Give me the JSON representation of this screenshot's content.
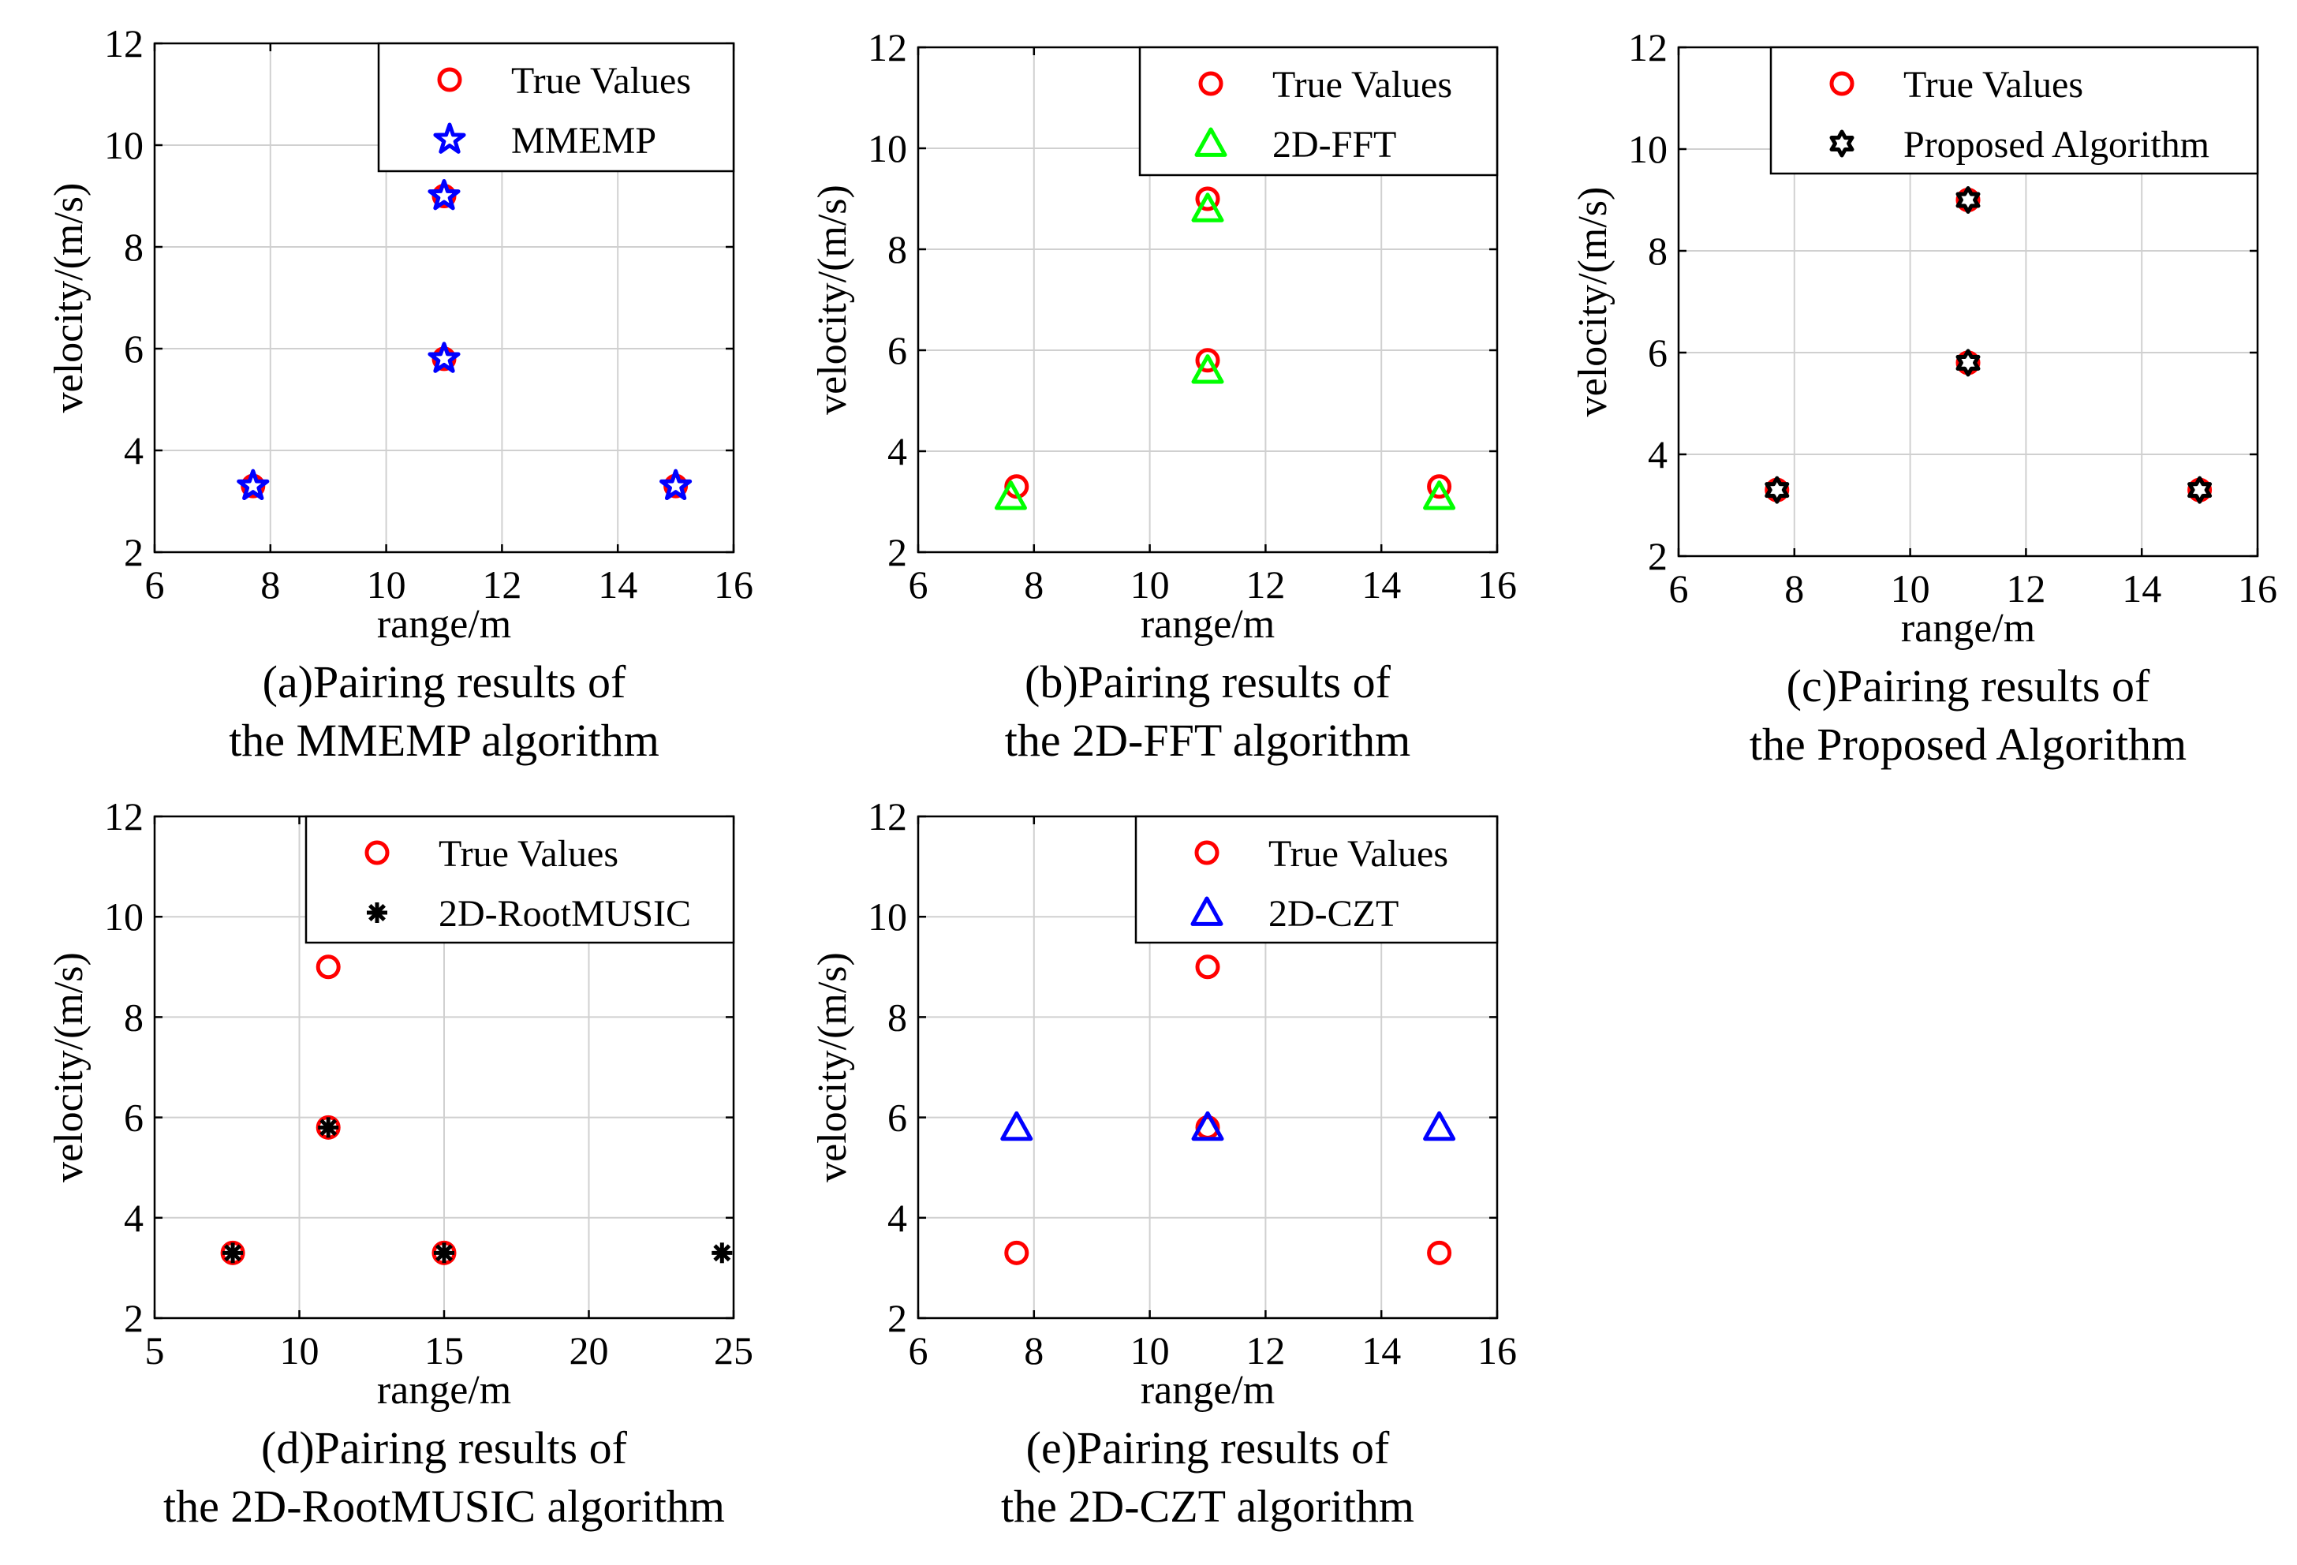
{
  "chart_data": [
    {
      "type": "scatter",
      "caption_line1": "(a)Pairing results of",
      "caption_line2": "the MMEMP algorithm",
      "xlabel": "range/m",
      "ylabel": "velocity/(m/s)",
      "xlim": [
        6,
        16
      ],
      "ylim": [
        2,
        12
      ],
      "xticks": [
        6,
        8,
        10,
        12,
        14,
        16
      ],
      "yticks": [
        2,
        4,
        6,
        8,
        10,
        12
      ],
      "grid": true,
      "legend_position": "top-right",
      "series": [
        {
          "name": "True Values",
          "marker": "circle",
          "color": "#ff0000",
          "points": [
            [
              7.7,
              3.3
            ],
            [
              11,
              5.8
            ],
            [
              11,
              9
            ],
            [
              15,
              3.3
            ]
          ]
        },
        {
          "name": "MMEMP",
          "marker": "pentagram",
          "color": "#0000ff",
          "points": [
            [
              7.7,
              3.3
            ],
            [
              11,
              5.8
            ],
            [
              11,
              9
            ],
            [
              15,
              3.3
            ]
          ]
        }
      ]
    },
    {
      "type": "scatter",
      "caption_line1": "(b)Pairing results of",
      "caption_line2": "the 2D-FFT algorithm",
      "xlabel": "range/m",
      "ylabel": "velocity/(m/s)",
      "xlim": [
        6,
        16
      ],
      "ylim": [
        2,
        12
      ],
      "xticks": [
        6,
        8,
        10,
        12,
        14,
        16
      ],
      "yticks": [
        2,
        4,
        6,
        8,
        10,
        12
      ],
      "grid": true,
      "legend_position": "top-right",
      "series": [
        {
          "name": "True Values",
          "marker": "circle",
          "color": "#ff0000",
          "points": [
            [
              7.7,
              3.3
            ],
            [
              11,
              5.8
            ],
            [
              11,
              9
            ],
            [
              15,
              3.3
            ]
          ]
        },
        {
          "name": "2D-FFT",
          "marker": "triangle",
          "color": "#00ff00",
          "points": [
            [
              7.6,
              3.1
            ],
            [
              11,
              5.6
            ],
            [
              11,
              8.8
            ],
            [
              15,
              3.1
            ]
          ]
        }
      ]
    },
    {
      "type": "scatter",
      "caption_line1": "(c)Pairing results of",
      "caption_line2": "the Proposed Algorithm",
      "xlabel": "range/m",
      "ylabel": "velocity/(m/s)",
      "xlim": [
        6,
        16
      ],
      "ylim": [
        2,
        12
      ],
      "xticks": [
        6,
        8,
        10,
        12,
        14,
        16
      ],
      "yticks": [
        2,
        4,
        6,
        8,
        10,
        12
      ],
      "grid": true,
      "legend_position": "top-right",
      "series": [
        {
          "name": "True Values",
          "marker": "circle",
          "color": "#ff0000",
          "points": [
            [
              7.7,
              3.3
            ],
            [
              11,
              5.8
            ],
            [
              11,
              9
            ],
            [
              15,
              3.3
            ]
          ]
        },
        {
          "name": "Proposed Algorithm",
          "marker": "hexagram",
          "color": "#000000",
          "points": [
            [
              7.7,
              3.3
            ],
            [
              11,
              5.8
            ],
            [
              11,
              9
            ],
            [
              15,
              3.3
            ]
          ]
        }
      ]
    },
    {
      "type": "scatter",
      "caption_line1": "(d)Pairing results of",
      "caption_line2": "the 2D-RootMUSIC algorithm",
      "xlabel": "range/m",
      "ylabel": "velocity/(m/s)",
      "xlim": [
        5,
        25
      ],
      "ylim": [
        2,
        12
      ],
      "xticks": [
        5,
        10,
        15,
        20,
        25
      ],
      "yticks": [
        2,
        4,
        6,
        8,
        10,
        12
      ],
      "grid": true,
      "legend_position": "top-right",
      "series": [
        {
          "name": "True Values",
          "marker": "circle",
          "color": "#ff0000",
          "points": [
            [
              7.7,
              3.3
            ],
            [
              11,
              5.8
            ],
            [
              11,
              9
            ],
            [
              15,
              3.3
            ]
          ]
        },
        {
          "name": "2D-RootMUSIC",
          "marker": "asterisk",
          "color": "#000000",
          "points": [
            [
              7.7,
              3.3
            ],
            [
              11,
              5.8
            ],
            [
              15,
              3.3
            ],
            [
              24.6,
              3.3
            ]
          ]
        }
      ]
    },
    {
      "type": "scatter",
      "caption_line1": "(e)Pairing results of",
      "caption_line2": "the 2D-CZT algorithm",
      "xlabel": "range/m",
      "ylabel": "velocity/(m/s)",
      "xlim": [
        6,
        16
      ],
      "ylim": [
        2,
        12
      ],
      "xticks": [
        6,
        8,
        10,
        12,
        14,
        16
      ],
      "yticks": [
        2,
        4,
        6,
        8,
        10,
        12
      ],
      "grid": true,
      "legend_position": "top-right",
      "series": [
        {
          "name": "True Values",
          "marker": "circle",
          "color": "#ff0000",
          "points": [
            [
              7.7,
              3.3
            ],
            [
              11,
              5.8
            ],
            [
              11,
              9
            ],
            [
              15,
              3.3
            ]
          ]
        },
        {
          "name": "2D-CZT",
          "marker": "triangle",
          "color": "#0000ff",
          "points": [
            [
              7.7,
              5.8
            ],
            [
              11,
              5.8
            ],
            [
              15,
              5.8
            ]
          ]
        }
      ]
    }
  ]
}
